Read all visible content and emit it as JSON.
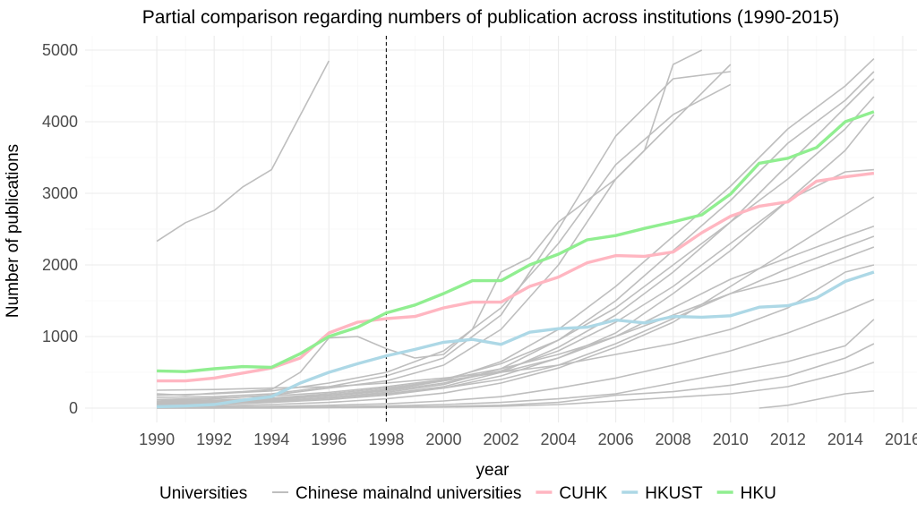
{
  "chart_data": {
    "type": "line",
    "title": "Partial comparison regarding numbers of publication across institutions (1990-2015)",
    "xlabel": "year",
    "ylabel": "Number of publications",
    "xlim": [
      1987.5,
      2016.5
    ],
    "ylim": [
      -200,
      5200
    ],
    "x_ticks": [
      1990,
      1992,
      1994,
      1996,
      1998,
      2000,
      2002,
      2004,
      2006,
      2008,
      2010,
      2012,
      2014,
      2016
    ],
    "y_ticks": [
      0,
      1000,
      2000,
      3000,
      4000,
      5000
    ],
    "grid": true,
    "vline_x": 1998,
    "legend": {
      "title": "Universities",
      "position": "bottom",
      "entries": [
        {
          "label": "Chinese mainalnd universities",
          "color": "#bebebe"
        },
        {
          "label": "CUHK",
          "color": "#ffb6c1"
        },
        {
          "label": "HKUST",
          "color": "#add8e6"
        },
        {
          "label": "HKU",
          "color": "#90ee90"
        }
      ]
    },
    "background_series": [
      {
        "x": [
          1990,
          1991,
          1992,
          1993,
          1994,
          1995,
          1996
        ],
        "y": [
          2330,
          2590,
          2760,
          3090,
          3330,
          4090,
          4850
        ]
      },
      {
        "x": [
          1990,
          1991,
          1992,
          1993,
          1994,
          1995,
          1996,
          1997,
          1998,
          1999,
          2000,
          2001,
          2002,
          2003,
          2004,
          2005,
          2006,
          2007,
          2008,
          2009
        ],
        "y": [
          200,
          180,
          210,
          230,
          260,
          500,
          980,
          1000,
          830,
          700,
          750,
          1100,
          1900,
          2100,
          2600,
          2900,
          3200,
          3600,
          4800,
          5000
        ]
      },
      {
        "x": [
          1990,
          1992,
          1994,
          1996,
          1998,
          2000,
          2002,
          2004,
          2006,
          2008,
          2010
        ],
        "y": [
          100,
          130,
          180,
          280,
          380,
          600,
          1100,
          2000,
          3200,
          4000,
          4800
        ]
      },
      {
        "x": [
          1990,
          1992,
          1994,
          1996,
          1998,
          2000,
          2002,
          2004,
          2006,
          2008,
          2010
        ],
        "y": [
          150,
          160,
          200,
          300,
          450,
          700,
          1300,
          2500,
          3800,
          4600,
          4700
        ]
      },
      {
        "x": [
          1990,
          1992,
          1994,
          1996,
          1998,
          2000,
          2002,
          2004,
          2006,
          2008,
          2010
        ],
        "y": [
          180,
          200,
          240,
          350,
          500,
          800,
          1400,
          2300,
          3400,
          4100,
          4520
        ]
      },
      {
        "x": [
          1990,
          1992,
          1994,
          1996,
          1998,
          2000,
          2002,
          2004,
          2006,
          2008,
          2010,
          2012,
          2014,
          2015
        ],
        "y": [
          60,
          80,
          110,
          180,
          250,
          380,
          650,
          1100,
          1700,
          2400,
          3100,
          3900,
          4500,
          4880
        ]
      },
      {
        "x": [
          1990,
          1992,
          1994,
          1996,
          1998,
          2000,
          2002,
          2004,
          2006,
          2008,
          2010,
          2012,
          2014,
          2015
        ],
        "y": [
          50,
          70,
          100,
          150,
          220,
          330,
          550,
          950,
          1500,
          2200,
          2900,
          3700,
          4300,
          4700
        ]
      },
      {
        "x": [
          1990,
          1992,
          1994,
          1996,
          1998,
          2000,
          2002,
          2004,
          2006,
          2008,
          2010,
          2012,
          2014,
          2015
        ],
        "y": [
          40,
          60,
          90,
          140,
          200,
          300,
          500,
          850,
          1300,
          1900,
          2600,
          3400,
          4200,
          4600
        ]
      },
      {
        "x": [
          1990,
          1992,
          1994,
          1996,
          1998,
          2000,
          2002,
          2004,
          2006,
          2008,
          2010,
          2012,
          2014,
          2015
        ],
        "y": [
          80,
          100,
          130,
          180,
          260,
          400,
          620,
          950,
          1400,
          2000,
          2600,
          3200,
          3900,
          4350
        ]
      },
      {
        "x": [
          1990,
          1992,
          1994,
          1996,
          1998,
          2000,
          2002,
          2004,
          2006,
          2008,
          2010,
          2012,
          2014,
          2015
        ],
        "y": [
          30,
          50,
          80,
          120,
          180,
          280,
          450,
          700,
          1050,
          1600,
          2200,
          2900,
          3600,
          4100
        ]
      },
      {
        "x": [
          1990,
          1992,
          1994,
          1996,
          1998,
          2000,
          2002,
          2004,
          2006,
          2008,
          2010,
          2012,
          2014,
          2015
        ],
        "y": [
          70,
          90,
          120,
          170,
          240,
          350,
          520,
          800,
          1200,
          1700,
          2300,
          2900,
          3300,
          3330
        ]
      },
      {
        "x": [
          1990,
          1992,
          1994,
          1996,
          1998,
          2000,
          2002,
          2004,
          2006,
          2008,
          2010,
          2012,
          2014,
          2015
        ],
        "y": [
          20,
          30,
          50,
          80,
          130,
          210,
          350,
          560,
          850,
          1200,
          1700,
          2200,
          2700,
          2950
        ]
      },
      {
        "x": [
          1990,
          1992,
          1994,
          1996,
          1998,
          2000,
          2002,
          2004,
          2006,
          2008,
          2010,
          2012,
          2014,
          2015
        ],
        "y": [
          90,
          110,
          140,
          200,
          280,
          380,
          500,
          700,
          1000,
          1400,
          1800,
          2100,
          2400,
          2540
        ]
      },
      {
        "x": [
          1990,
          1992,
          1994,
          1996,
          1998,
          2000,
          2002,
          2004,
          2006,
          2008,
          2010,
          2012,
          2014,
          2015
        ],
        "y": [
          60,
          80,
          100,
          140,
          200,
          280,
          400,
          600,
          900,
          1250,
          1600,
          1950,
          2250,
          2400
        ]
      },
      {
        "x": [
          1990,
          1992,
          1994,
          1996,
          1998,
          2000,
          2002,
          2004,
          2006,
          2008,
          2010,
          2012,
          2014,
          2015
        ],
        "y": [
          120,
          140,
          170,
          220,
          300,
          400,
          550,
          750,
          1000,
          1300,
          1600,
          1800,
          2100,
          2250
        ]
      },
      {
        "x": [
          1990,
          1992,
          1994,
          1996,
          1998,
          2000,
          2002,
          2004,
          2006,
          2008,
          2010,
          2012,
          2014,
          2015
        ],
        "y": [
          10,
          15,
          25,
          40,
          60,
          100,
          160,
          280,
          420,
          600,
          800,
          1050,
          1350,
          1520
        ]
      },
      {
        "x": [
          1990,
          1992,
          1994,
          1996,
          1998,
          2000,
          2002,
          2004,
          2006,
          2008,
          2010,
          2012,
          2014,
          2015
        ],
        "y": [
          250,
          260,
          280,
          300,
          350,
          420,
          500,
          600,
          750,
          900,
          1100,
          1400,
          1900,
          2000
        ]
      },
      {
        "x": [
          1990,
          1992,
          1994,
          1996,
          1998,
          2000,
          2002,
          2004,
          2006,
          2008,
          2010,
          2012,
          2014,
          2015
        ],
        "y": [
          5,
          8,
          12,
          20,
          30,
          50,
          80,
          130,
          200,
          350,
          500,
          650,
          870,
          1240
        ]
      },
      {
        "x": [
          1990,
          1992,
          1994,
          1996,
          1998,
          2000,
          2002,
          2004,
          2006,
          2008,
          2010,
          2012,
          2014,
          2015
        ],
        "y": [
          0,
          2,
          5,
          10,
          15,
          25,
          40,
          80,
          180,
          230,
          320,
          450,
          700,
          900
        ]
      },
      {
        "x": [
          1990,
          1992,
          1994,
          1996,
          1998,
          2000,
          2002,
          2004,
          2006,
          2008,
          2010,
          2012,
          2014,
          2015
        ],
        "y": [
          0,
          0,
          0,
          5,
          10,
          15,
          25,
          50,
          100,
          150,
          200,
          300,
          500,
          640
        ]
      },
      {
        "x": [
          2011,
          2012,
          2013,
          2014,
          2015
        ],
        "y": [
          0,
          40,
          120,
          200,
          240
        ]
      }
    ],
    "series": [
      {
        "name": "CUHK",
        "color": "#ffb6c1",
        "x": [
          1990,
          1991,
          1992,
          1993,
          1994,
          1995,
          1996,
          1997,
          1998,
          1999,
          2000,
          2001,
          2002,
          2003,
          2004,
          2005,
          2006,
          2007,
          2008,
          2009,
          2010,
          2011,
          2012,
          2013,
          2014,
          2015
        ],
        "values": [
          380,
          380,
          420,
          490,
          560,
          700,
          1050,
          1200,
          1250,
          1280,
          1400,
          1480,
          1480,
          1700,
          1830,
          2030,
          2130,
          2120,
          2180,
          2450,
          2680,
          2820,
          2880,
          3170,
          3230,
          3280
        ]
      },
      {
        "name": "HKUST",
        "color": "#add8e6",
        "x": [
          1990,
          1991,
          1992,
          1993,
          1994,
          1995,
          1996,
          1997,
          1998,
          1999,
          2000,
          2001,
          2002,
          2003,
          2004,
          2005,
          2006,
          2007,
          2008,
          2009,
          2010,
          2011,
          2012,
          2013,
          2014,
          2015
        ],
        "values": [
          20,
          30,
          50,
          110,
          160,
          350,
          500,
          620,
          730,
          820,
          920,
          960,
          890,
          1060,
          1110,
          1130,
          1230,
          1190,
          1280,
          1270,
          1290,
          1410,
          1430,
          1540,
          1770,
          1900
        ]
      },
      {
        "name": "HKU",
        "color": "#90ee90",
        "x": [
          1990,
          1991,
          1992,
          1993,
          1994,
          1995,
          1996,
          1997,
          1998,
          1999,
          2000,
          2001,
          2002,
          2003,
          2004,
          2005,
          2006,
          2007,
          2008,
          2009,
          2010,
          2011,
          2012,
          2013,
          2014,
          2015
        ],
        "values": [
          520,
          510,
          550,
          580,
          570,
          760,
          1000,
          1130,
          1330,
          1440,
          1600,
          1780,
          1780,
          2000,
          2150,
          2350,
          2410,
          2510,
          2600,
          2700,
          2990,
          3420,
          3490,
          3640,
          4000,
          4140
        ]
      }
    ]
  }
}
